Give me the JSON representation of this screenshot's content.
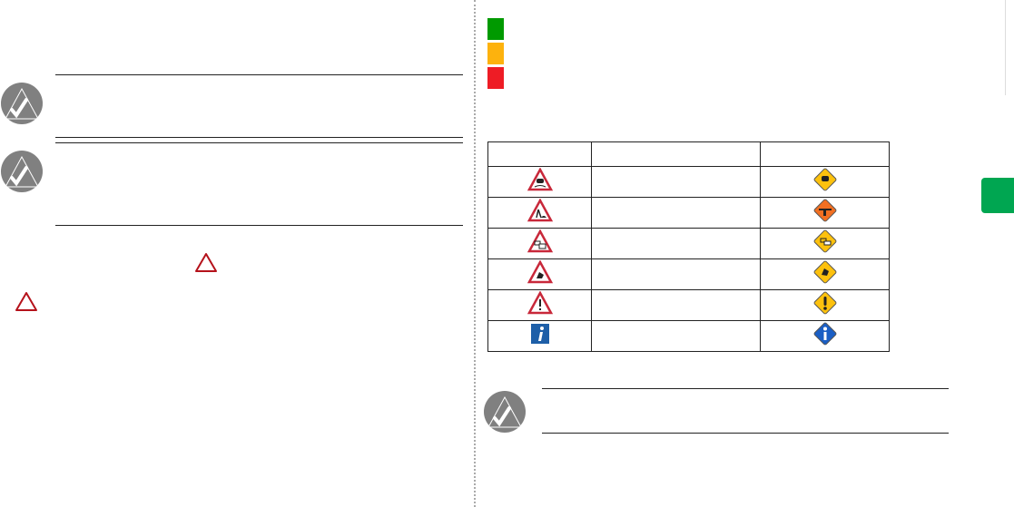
{
  "colors": {
    "status_green": "#009a00",
    "status_amber": "#fdb20d",
    "status_red": "#ee1c25",
    "section_tab": "#00a651",
    "note_icon": "#808080",
    "warning_red": "#b5121b"
  },
  "left_page": {
    "notes": [
      {
        "icon": "note-check-icon"
      },
      {
        "icon": "note-check-icon"
      }
    ],
    "inline_icons": [
      "warning-triangle-icon",
      "warning-triangle-icon"
    ]
  },
  "right_page": {
    "status_legend": [
      "green-square",
      "amber-square",
      "red-square"
    ],
    "table": {
      "header": [
        "",
        "",
        ""
      ],
      "rows": [
        {
          "intl_icon": "slippery-road-icon",
          "label": "",
          "us_icon": "slippery-road-diamond-icon"
        },
        {
          "intl_icon": "road-work-icon",
          "label": "",
          "us_icon": "flagger-diamond-icon"
        },
        {
          "intl_icon": "traffic-jam-icon",
          "label": "",
          "us_icon": "traffic-jam-diamond-icon"
        },
        {
          "intl_icon": "accident-icon",
          "label": "",
          "us_icon": "accident-diamond-icon"
        },
        {
          "intl_icon": "incident-icon",
          "label": "",
          "us_icon": "incident-diamond-icon"
        },
        {
          "intl_icon": "information-icon",
          "label": "",
          "us_icon": "information-diamond-icon"
        }
      ]
    },
    "note": {
      "icon": "note-check-icon"
    }
  }
}
